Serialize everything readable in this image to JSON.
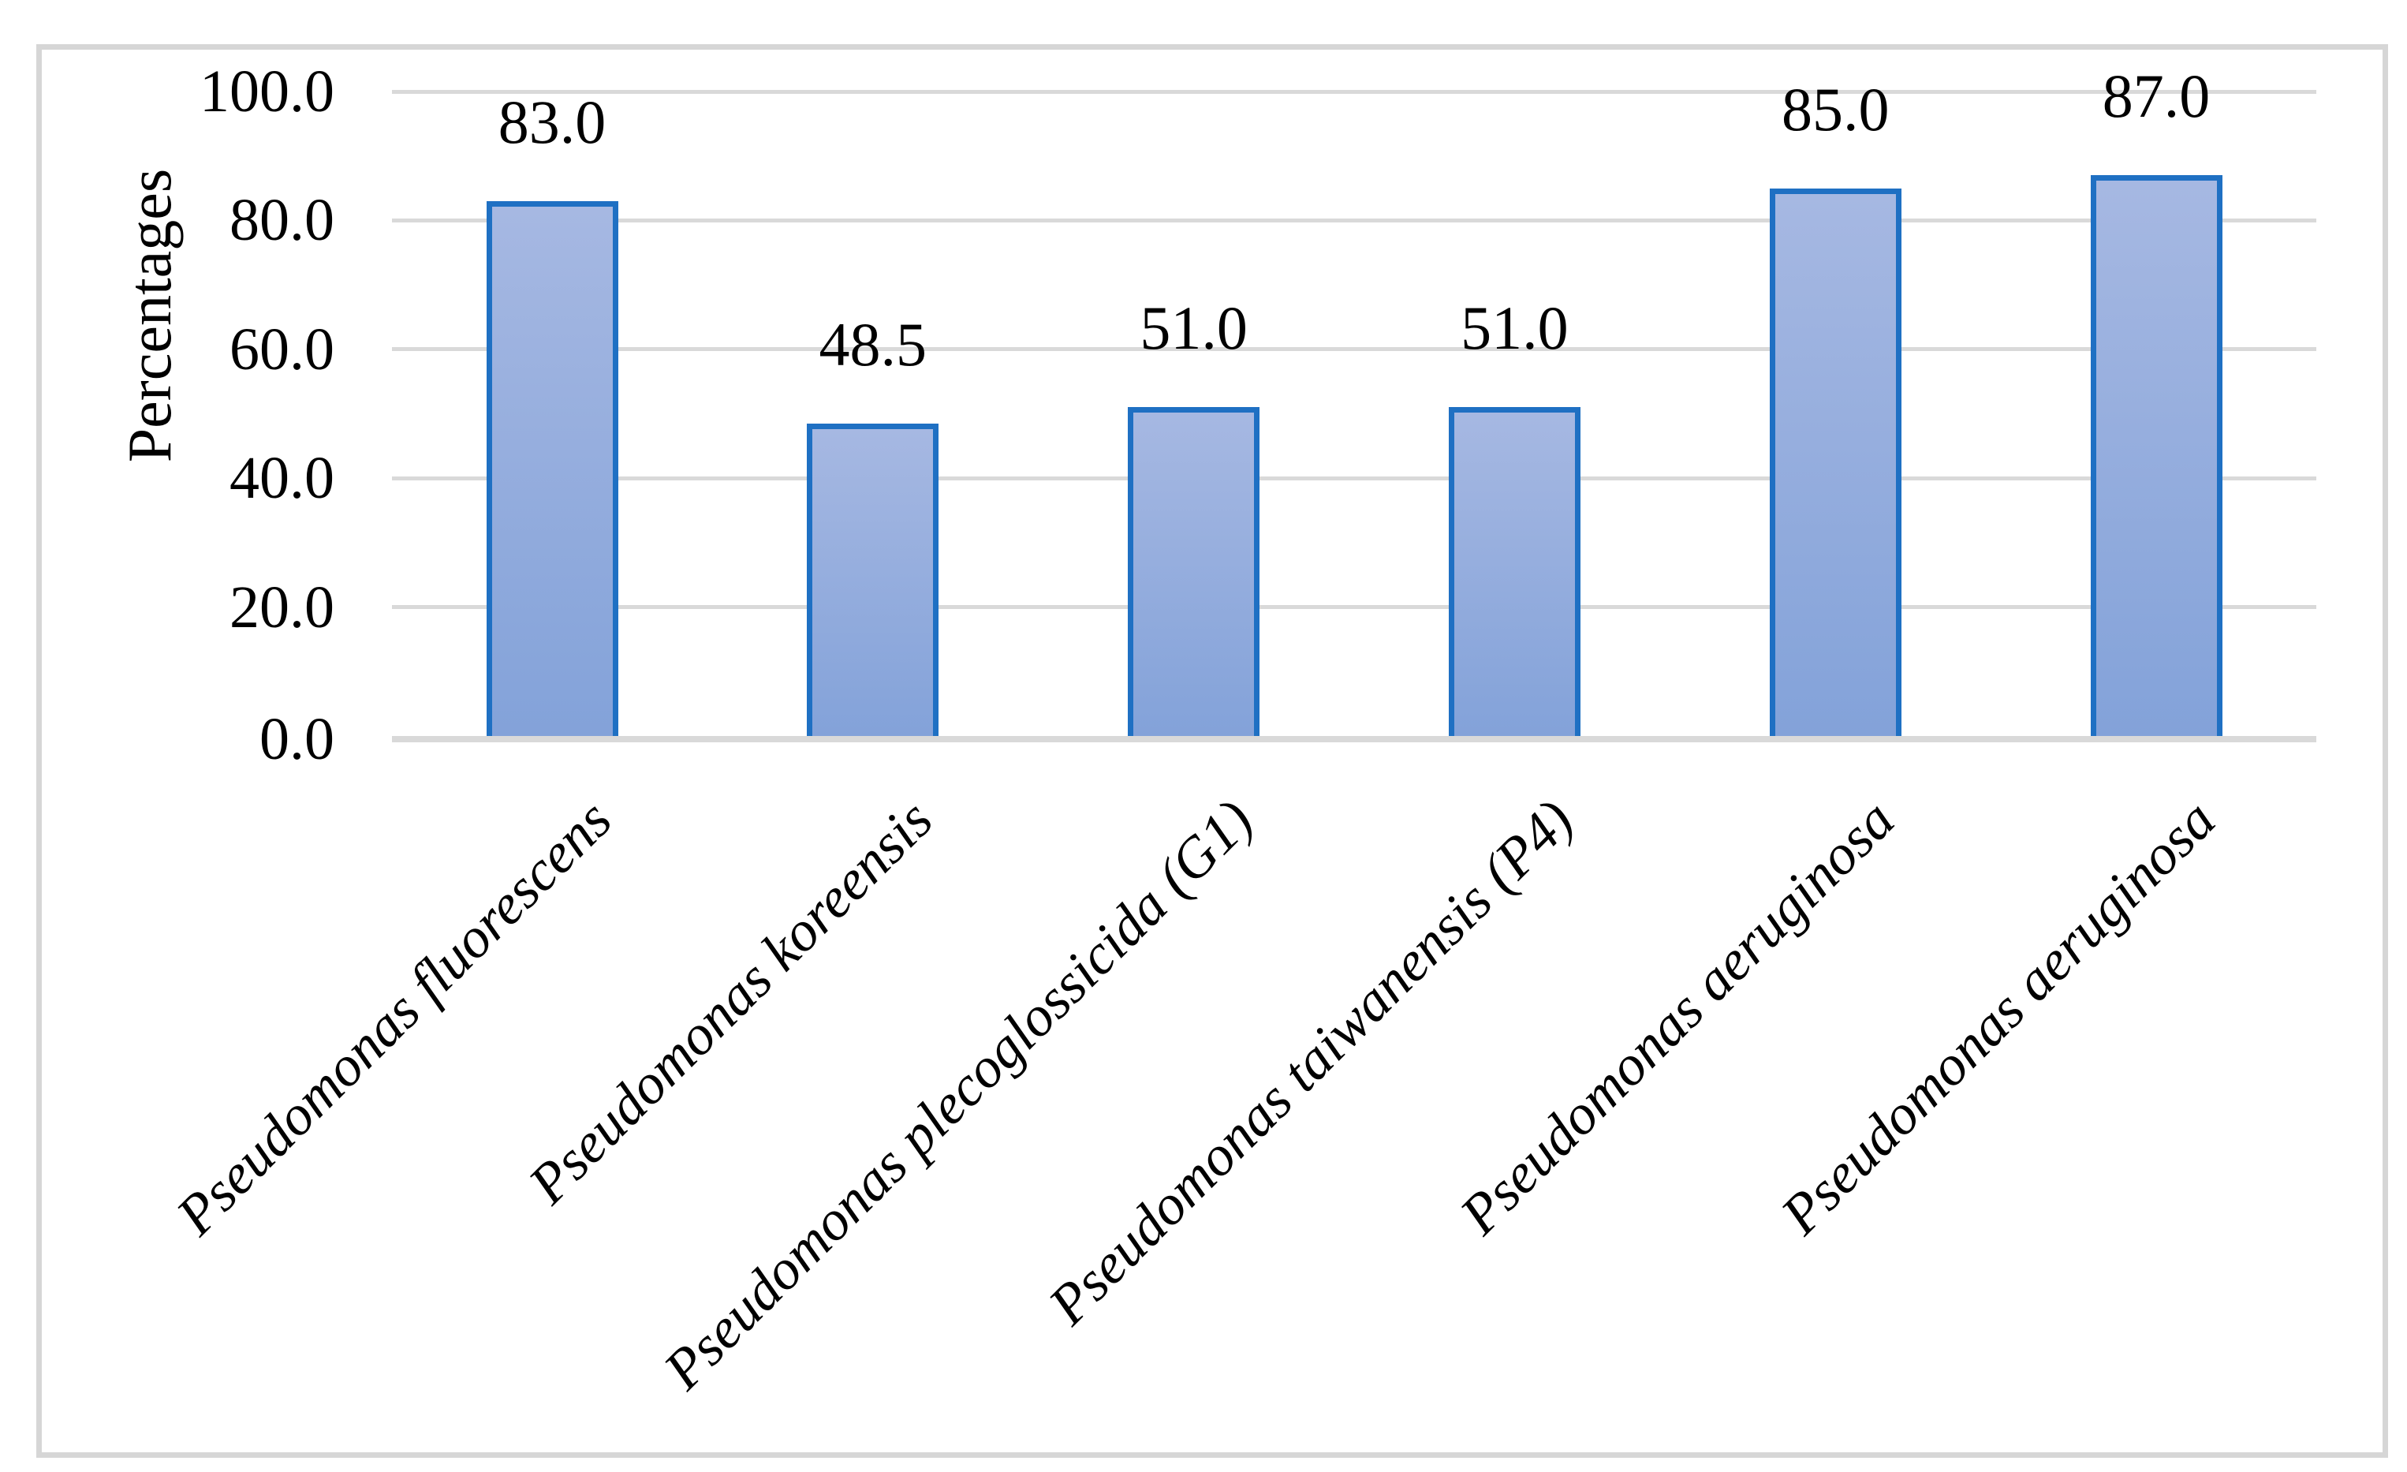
{
  "chart_data": {
    "type": "bar",
    "title": "",
    "xlabel": "",
    "ylabel": "Percentages",
    "categories": [
      "Pseudomonas fluorescens",
      "Pseudomonas koreensis",
      "Pseudomonas plecoglossicida (G1)",
      "Pseudomonas taiwanensis (P4)",
      "Pseudomonas aeruginosa",
      "Pseudomonas aeruginosa"
    ],
    "values": [
      83.0,
      48.5,
      51.0,
      51.0,
      85.0,
      87.0
    ],
    "data_labels": [
      "83.0",
      "48.5",
      "51.0",
      "51.0",
      "85.0",
      "87.0"
    ],
    "ylim": [
      0,
      100
    ],
    "yticks": [
      0,
      20,
      40,
      60,
      80,
      100
    ],
    "ytick_labels": [
      "0.0",
      "20.0",
      "40.0",
      "60.0",
      "80.0",
      "100.0"
    ],
    "grid": true,
    "legend": "none",
    "category_label_style": "italic, rotated 45deg",
    "colors": {
      "bar_border": "#1f70c3",
      "bar_fill_top": "#a6b8e2",
      "bar_fill_bottom": "#83a2d9",
      "gridline": "#d9d9d9",
      "axis_line": "#d9d9d9",
      "frame_border": "#d6d6d6",
      "text": "#000000"
    }
  }
}
